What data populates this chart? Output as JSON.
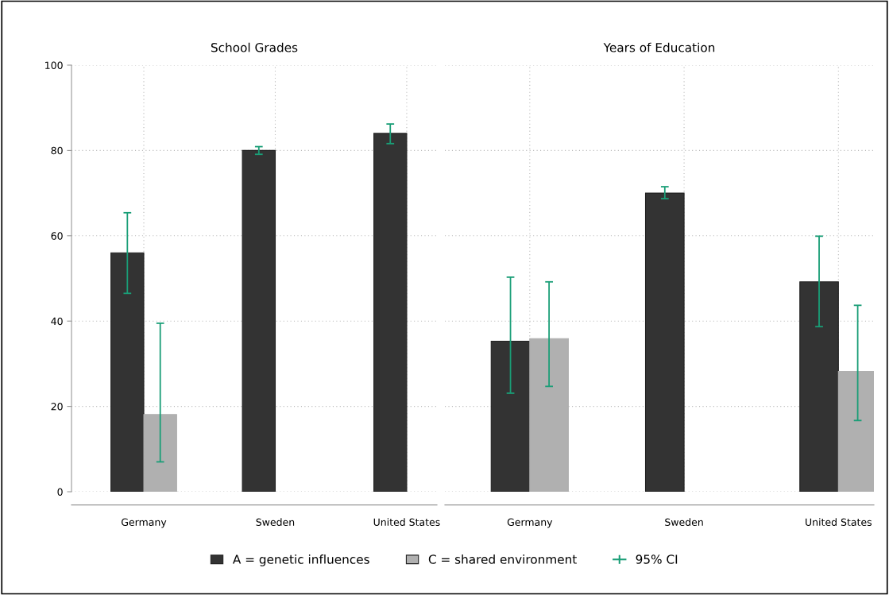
{
  "chart_data": [
    {
      "type": "bar",
      "title": "School Grades",
      "categories": [
        "Germany",
        "Sweden",
        "United States"
      ],
      "series": [
        {
          "name": "A = genetic influences",
          "color": "#333333",
          "values": [
            56,
            80,
            84
          ],
          "errors": [
            [
              46.5,
              65.4
            ],
            [
              79.1,
              80.9
            ],
            [
              81.6,
              86.2
            ]
          ]
        },
        {
          "name": "C = shared environment",
          "color": "#b0b0b0",
          "values": [
            18.1,
            null,
            null
          ],
          "errors": [
            [
              7.0,
              39.5
            ],
            null,
            null
          ]
        }
      ],
      "ylim": [
        0,
        100
      ],
      "yticks": [
        0,
        20,
        40,
        60,
        80,
        100
      ],
      "grid": true,
      "legend": "bottom",
      "annotations": [
        "95% CI"
      ]
    },
    {
      "type": "bar",
      "title": "Years of Education",
      "categories": [
        "Germany",
        "Sweden",
        "United States"
      ],
      "series": [
        {
          "color": "#333333",
          "values": [
            35.3,
            70,
            49.2
          ],
          "errors": [
            [
              23.1,
              50.3
            ],
            [
              68.7,
              71.5
            ],
            [
              38.7,
              59.9
            ]
          ]
        },
        {
          "color": "#b0b0b0",
          "values": [
            35.9,
            null,
            28.2
          ],
          "errors": [
            [
              24.7,
              49.2
            ],
            null,
            [
              16.7,
              43.7
            ]
          ]
        }
      ],
      "ylim": [
        0,
        100
      ],
      "yticks": [
        0,
        20,
        40,
        60,
        80,
        100
      ],
      "grid": true,
      "tick_labels": "x"
    }
  ]
}
